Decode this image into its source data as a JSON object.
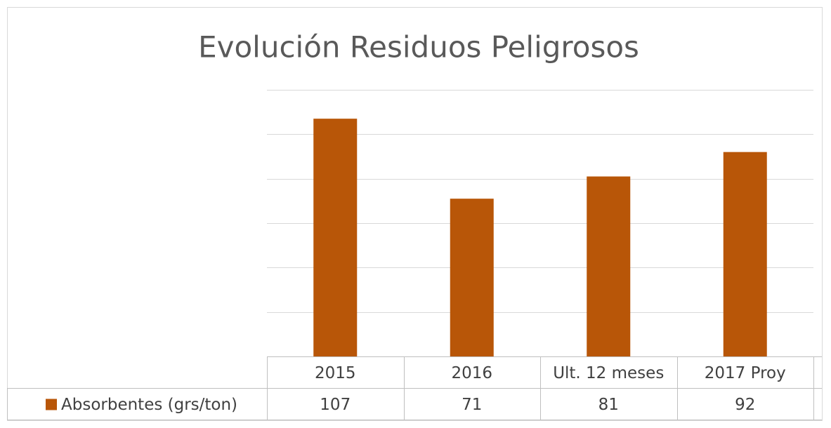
{
  "chart_data": {
    "type": "bar",
    "title": "Evolución Residuos Peligrosos",
    "categories": [
      "2015",
      "2016",
      "Ult. 12 meses",
      "2017 Proy"
    ],
    "series": [
      {
        "name": "Absorbentes (grs/ton)",
        "color": "#b85608",
        "values": [
          107,
          71,
          81,
          92
        ]
      }
    ],
    "ylim": [
      0,
      120
    ],
    "yticks": [
      0,
      20,
      40,
      60,
      80,
      100,
      120
    ],
    "grid": true,
    "data_table": true
  }
}
